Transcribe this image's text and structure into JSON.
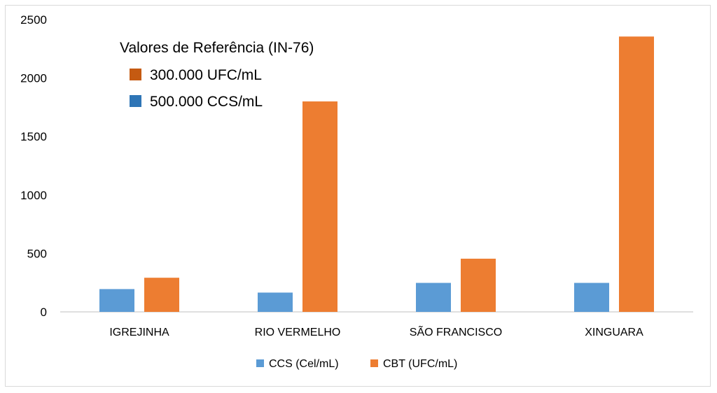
{
  "chart_data": {
    "type": "bar",
    "categories": [
      "IGREJINHA",
      "RIO VERMELHO",
      "SÃO FRANCISCO",
      "XINGUARA"
    ],
    "series": [
      {
        "name": "CCS (Cel/mL)",
        "values": [
          195,
          165,
          248,
          248
        ],
        "color": "#5B9BD5"
      },
      {
        "name": "CBT (UFC/mL)",
        "values": [
          292,
          1800,
          455,
          2355
        ],
        "color": "#ED7D31"
      }
    ],
    "ylim": [
      0,
      2500
    ],
    "yticks": [
      0,
      500,
      1000,
      1500,
      2000,
      2500
    ],
    "grid": false,
    "legend_position": "bottom",
    "annotation": {
      "title": "Valores de  Referência (IN-76)",
      "items": [
        {
          "label": "300.000 UFC/mL",
          "color": "#C55A11"
        },
        {
          "label": "500.000 CCS/mL",
          "color": "#2E75B6"
        }
      ]
    }
  }
}
